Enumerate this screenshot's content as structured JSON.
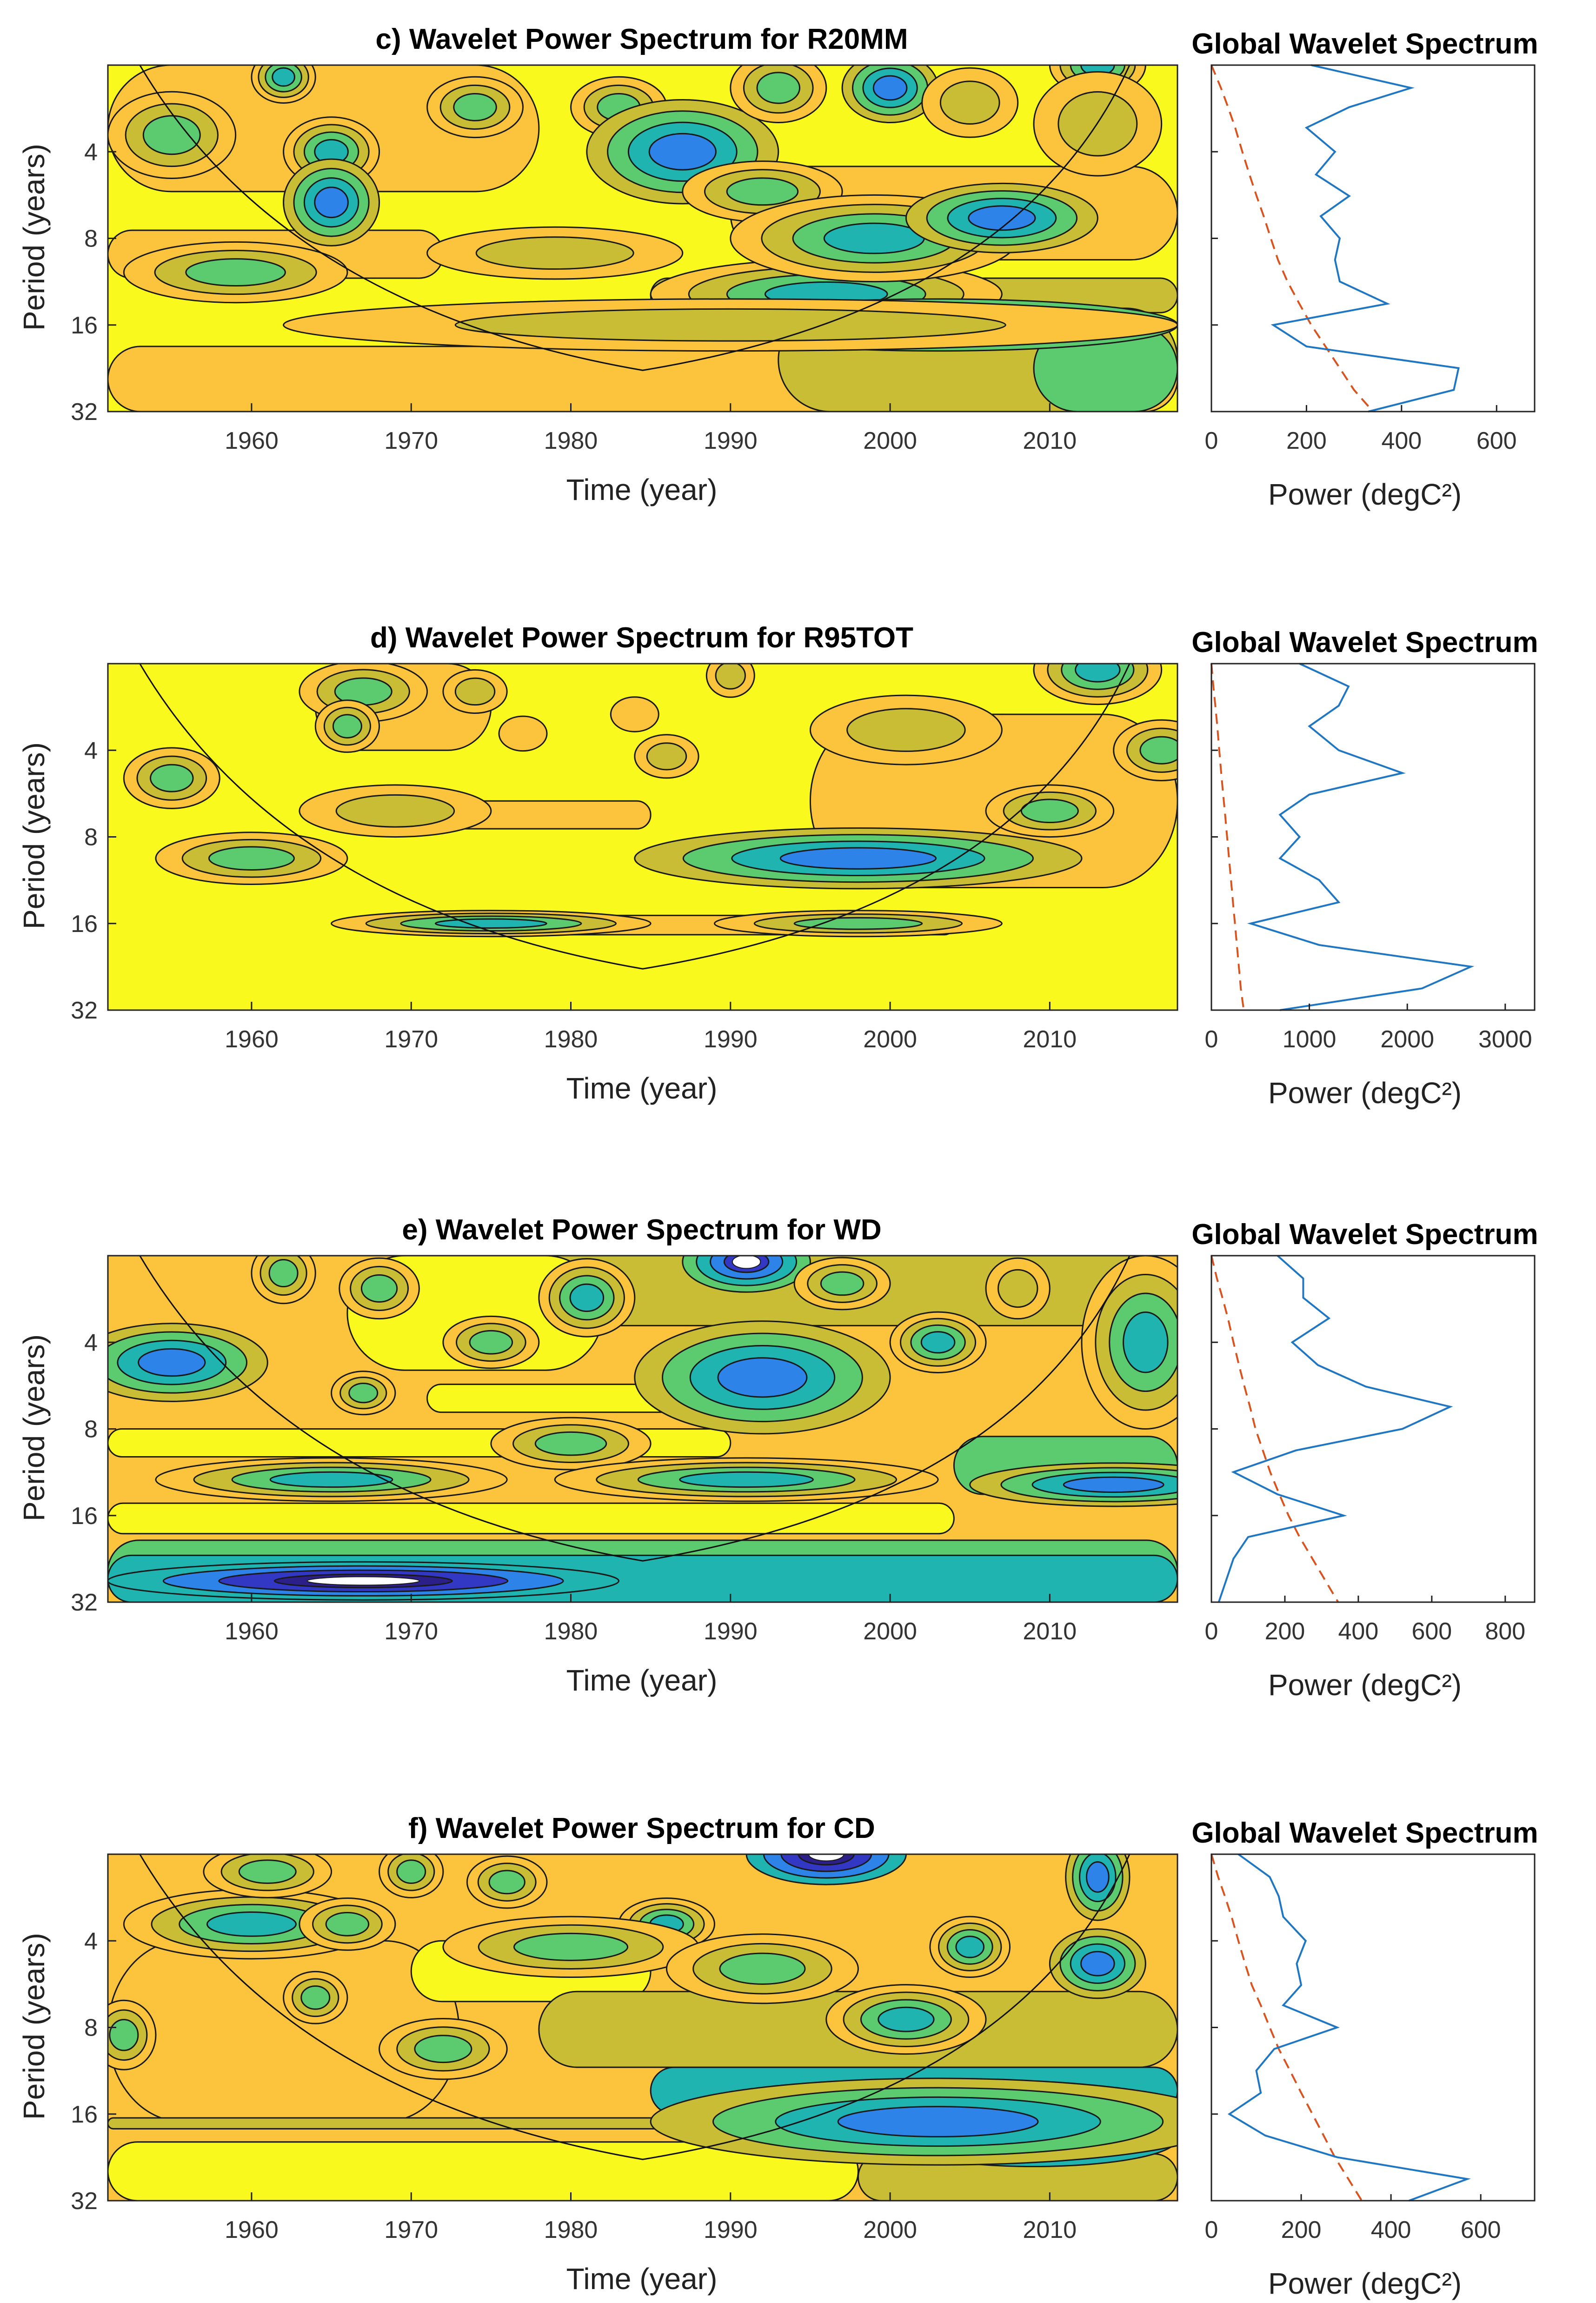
{
  "colors": {
    "yellow": "#f9f91e",
    "orange": "#fbc43c",
    "olive": "#c8bd34",
    "green": "#5ccb70",
    "teal": "#1fb4b0",
    "blue": "#2d83e8",
    "indigo": "#3338c4",
    "navy": "#2c1f8a",
    "power_line": "#1f77c4",
    "significance_line": "#d9531e"
  },
  "chart_data": [
    {
      "type": "heatmap",
      "title": "c) Wavelet Power Spectrum for  R20MM",
      "xlabel": "Time (year)",
      "ylabel": "Period (years)",
      "xlim": [
        1951,
        2018
      ],
      "ylim": [
        2,
        32
      ],
      "x_ticks": [
        "1960",
        "1970",
        "1980",
        "1990",
        "2000",
        "2010"
      ],
      "y_ticks": [
        "4",
        "8",
        "16",
        "32"
      ],
      "bg_level": 0,
      "blobs": [
        {
          "t": 1955,
          "p": 3.5,
          "lvl": 3,
          "w": 4,
          "h": 0.5
        },
        {
          "t": 1962,
          "p": 2.2,
          "lvl": 4,
          "w": 2,
          "h": 0.3
        },
        {
          "t": 1965,
          "p": 4.0,
          "lvl": 4,
          "w": 3,
          "h": 0.4
        },
        {
          "t": 1965,
          "p": 6.0,
          "lvl": 5,
          "w": 3,
          "h": 0.5
        },
        {
          "t": 1959,
          "p": 10.5,
          "lvl": 3,
          "w": 7,
          "h": 0.35
        },
        {
          "t": 1974,
          "p": 2.8,
          "lvl": 3,
          "w": 3,
          "h": 0.35
        },
        {
          "t": 1983,
          "p": 2.8,
          "lvl": 3,
          "w": 3,
          "h": 0.35
        },
        {
          "t": 1979,
          "p": 9.0,
          "lvl": 2,
          "w": 8,
          "h": 0.3
        },
        {
          "t": 1987,
          "p": 4.0,
          "lvl": 5,
          "w": 6,
          "h": 0.6
        },
        {
          "t": 1993,
          "p": 2.4,
          "lvl": 3,
          "w": 3,
          "h": 0.4
        },
        {
          "t": 1992,
          "p": 5.5,
          "lvl": 3,
          "w": 5,
          "h": 0.35
        },
        {
          "t": 1996,
          "p": 12.5,
          "lvl": 4,
          "w": 11,
          "h": 0.4
        },
        {
          "t": 1999,
          "p": 8.0,
          "lvl": 4,
          "w": 9,
          "h": 0.5
        },
        {
          "t": 2000,
          "p": 2.4,
          "lvl": 5,
          "w": 3,
          "h": 0.4
        },
        {
          "t": 2007,
          "p": 6.8,
          "lvl": 5,
          "w": 6,
          "h": 0.4
        },
        {
          "t": 2005,
          "p": 2.7,
          "lvl": 2,
          "w": 3,
          "h": 0.4
        },
        {
          "t": 2013,
          "p": 2.0,
          "lvl": 4,
          "w": 3,
          "h": 0.35
        },
        {
          "t": 2003,
          "p": 16.0,
          "lvl": 6,
          "w": 15,
          "h": 0.3
        },
        {
          "t": 1990,
          "p": 16.0,
          "lvl": 2,
          "w": 28,
          "h": 0.3
        },
        {
          "t": 2013,
          "p": 3.2,
          "lvl": 2,
          "w": 4,
          "h": 0.6
        }
      ],
      "bands": [
        {
          "x0": 1951,
          "x1": 1978,
          "p0": 2.0,
          "p1": 5.5,
          "lvl": 1
        },
        {
          "x0": 1990,
          "x1": 2018,
          "p0": 4.5,
          "p1": 9.5,
          "lvl": 1
        },
        {
          "x0": 1951,
          "x1": 1972,
          "p0": 7.5,
          "p1": 11.0,
          "lvl": 1
        },
        {
          "x0": 1985,
          "x1": 2018,
          "p0": 11.0,
          "p1": 14.5,
          "lvl": 2
        },
        {
          "x0": 1951,
          "x1": 2018,
          "p0": 19.0,
          "p1": 32.0,
          "lvl": 1
        },
        {
          "x0": 1993,
          "x1": 2018,
          "p0": 14.0,
          "p1": 32.0,
          "lvl": 2
        },
        {
          "x0": 2009,
          "x1": 2018,
          "p0": 16.0,
          "p1": 32.0,
          "lvl": 3
        }
      ],
      "global": {
        "title": "Global Wavelet Spectrum",
        "xlabel": "Power (degC²)",
        "xlim": [
          0,
          680
        ],
        "x_ticks": [
          0,
          200,
          400,
          600
        ],
        "periods": [
          2.0,
          2.4,
          2.8,
          3.3,
          4.0,
          4.8,
          5.7,
          6.7,
          8.0,
          9.5,
          11.3,
          13.5,
          16.0,
          19.0,
          22.6,
          26.9,
          32.0
        ],
        "power": [
          210,
          420,
          290,
          200,
          260,
          220,
          290,
          230,
          270,
          260,
          270,
          370,
          130,
          200,
          520,
          510,
          330
        ],
        "significance": [
          0,
          20,
          35,
          50,
          65,
          80,
          95,
          110,
          125,
          140,
          160,
          185,
          210,
          240,
          270,
          300,
          340
        ]
      }
    },
    {
      "type": "heatmap",
      "title": "d) Wavelet Power Spectrum for  R95TOT",
      "xlabel": "Time (year)",
      "ylabel": "Period (years)",
      "xlim": [
        1951,
        2018
      ],
      "ylim": [
        2,
        32
      ],
      "x_ticks": [
        "1960",
        "1970",
        "1980",
        "1990",
        "2000",
        "2010"
      ],
      "y_ticks": [
        "4",
        "8",
        "16",
        "32"
      ],
      "bg_level": 0,
      "blobs": [
        {
          "t": 1955,
          "p": 5.0,
          "lvl": 3,
          "w": 3,
          "h": 0.35
        },
        {
          "t": 1960,
          "p": 9.5,
          "lvl": 3,
          "w": 6,
          "h": 0.3
        },
        {
          "t": 1969,
          "p": 6.5,
          "lvl": 2,
          "w": 6,
          "h": 0.3
        },
        {
          "t": 1967,
          "p": 2.5,
          "lvl": 3,
          "w": 4,
          "h": 0.35
        },
        {
          "t": 1966,
          "p": 3.3,
          "lvl": 3,
          "w": 2,
          "h": 0.3
        },
        {
          "t": 1974,
          "p": 2.5,
          "lvl": 2,
          "w": 2,
          "h": 0.25
        },
        {
          "t": 1977,
          "p": 3.5,
          "lvl": 1,
          "w": 1.5,
          "h": 0.2
        },
        {
          "t": 1984,
          "p": 3.0,
          "lvl": 1,
          "w": 1.5,
          "h": 0.2
        },
        {
          "t": 1986,
          "p": 4.2,
          "lvl": 2,
          "w": 2,
          "h": 0.25
        },
        {
          "t": 1990,
          "p": 2.2,
          "lvl": 2,
          "w": 1.5,
          "h": 0.25
        },
        {
          "t": 1975,
          "p": 16.0,
          "lvl": 4,
          "w": 10,
          "h": 0.15
        },
        {
          "t": 1998,
          "p": 16.0,
          "lvl": 3,
          "w": 9,
          "h": 0.15
        },
        {
          "t": 1998,
          "p": 9.5,
          "lvl": 5,
          "w": 14,
          "h": 0.35
        },
        {
          "t": 2001,
          "p": 3.4,
          "lvl": 2,
          "w": 6,
          "h": 0.4
        },
        {
          "t": 2010,
          "p": 6.5,
          "lvl": 3,
          "w": 4,
          "h": 0.3
        },
        {
          "t": 2013,
          "p": 2.1,
          "lvl": 4,
          "w": 4,
          "h": 0.4
        },
        {
          "t": 2017,
          "p": 4.0,
          "lvl": 3,
          "w": 3,
          "h": 0.35
        }
      ],
      "bands": [
        {
          "x0": 1995,
          "x1": 2018,
          "p0": 3.0,
          "p1": 12.0,
          "lvl": 1
        },
        {
          "x0": 1964,
          "x1": 1975,
          "p0": 2.0,
          "p1": 4.0,
          "lvl": 1
        },
        {
          "x0": 1975,
          "x1": 2004,
          "p0": 15.0,
          "p1": 17.5,
          "lvl": 1
        },
        {
          "x0": 1965,
          "x1": 1985,
          "p0": 6.0,
          "p1": 7.5,
          "lvl": 1
        }
      ],
      "global": {
        "title": "Global Wavelet Spectrum",
        "xlabel": "Power (degC²)",
        "xlim": [
          0,
          3300
        ],
        "x_ticks": [
          0,
          1000,
          2000,
          3000
        ],
        "periods": [
          2.0,
          2.4,
          2.8,
          3.3,
          4.0,
          4.8,
          5.7,
          6.7,
          8.0,
          9.5,
          11.3,
          13.5,
          16.0,
          19.0,
          22.6,
          26.9,
          32.0
        ],
        "power": [
          900,
          1400,
          1300,
          1000,
          1300,
          1950,
          1000,
          700,
          900,
          700,
          1100,
          1300,
          400,
          1100,
          2650,
          2150,
          700
        ],
        "significance": [
          0,
          20,
          40,
          60,
          80,
          100,
          120,
          140,
          160,
          180,
          200,
          220,
          240,
          260,
          280,
          300,
          330
        ]
      }
    },
    {
      "type": "heatmap",
      "title": "e) Wavelet Power Spectrum for  WD",
      "xlabel": "Time (year)",
      "ylabel": "Period (years)",
      "xlim": [
        1951,
        2018
      ],
      "ylim": [
        2,
        32
      ],
      "x_ticks": [
        "1960",
        "1970",
        "1980",
        "1990",
        "2000",
        "2010"
      ],
      "y_ticks": [
        "4",
        "8",
        "16",
        "32"
      ],
      "bg_level": 1,
      "blobs": [
        {
          "t": 1955,
          "p": 4.7,
          "lvl": 5,
          "w": 6,
          "h": 0.45
        },
        {
          "t": 1962,
          "p": 2.3,
          "lvl": 3,
          "w": 2,
          "h": 0.35
        },
        {
          "t": 1967,
          "p": 6.0,
          "lvl": 3,
          "w": 2,
          "h": 0.25
        },
        {
          "t": 1968,
          "p": 2.6,
          "lvl": 3,
          "w": 2.5,
          "h": 0.35
        },
        {
          "t": 1975,
          "p": 4.0,
          "lvl": 3,
          "w": 3,
          "h": 0.3
        },
        {
          "t": 1981,
          "p": 2.8,
          "lvl": 4,
          "w": 3,
          "h": 0.45
        },
        {
          "t": 1980,
          "p": 9.0,
          "lvl": 3,
          "w": 5,
          "h": 0.3
        },
        {
          "t": 1965,
          "p": 12.0,
          "lvl": 4,
          "w": 11,
          "h": 0.25
        },
        {
          "t": 1991,
          "p": 12.0,
          "lvl": 4,
          "w": 12,
          "h": 0.25
        },
        {
          "t": 1992,
          "p": 5.3,
          "lvl": 5,
          "w": 8,
          "h": 0.65
        },
        {
          "t": 1991,
          "p": 2.1,
          "lvl": 6,
          "w": 4,
          "h": 0.35
        },
        {
          "t": 1997,
          "p": 2.5,
          "lvl": 3,
          "w": 3,
          "h": 0.3
        },
        {
          "t": 2003,
          "p": 4.0,
          "lvl": 4,
          "w": 3,
          "h": 0.35
        },
        {
          "t": 2008,
          "p": 2.6,
          "lvl": 2,
          "w": 2,
          "h": 0.35
        },
        {
          "t": 1967,
          "p": 27.0,
          "lvl": 7,
          "w": 16,
          "h": 0.22
        },
        {
          "t": 2016,
          "p": 4.0,
          "lvl": 4,
          "w": 4,
          "h": 1.0
        },
        {
          "t": 2014,
          "p": 12.5,
          "lvl": 5,
          "w": 9,
          "h": 0.25
        }
      ],
      "bands": [
        {
          "x0": 1968,
          "x1": 2018,
          "p0": 2.0,
          "p1": 3.5,
          "lvl": 2
        },
        {
          "x0": 1951,
          "x1": 1990,
          "p0": 8.0,
          "p1": 10.0,
          "lvl": 0
        },
        {
          "x0": 1971,
          "x1": 1987,
          "p0": 5.6,
          "p1": 7.0,
          "lvl": 0
        },
        {
          "x0": 1966,
          "x1": 1982,
          "p0": 2.0,
          "p1": 5.0,
          "lvl": 0
        },
        {
          "x0": 1951,
          "x1": 2018,
          "p0": 19.5,
          "p1": 32.0,
          "lvl": 3
        },
        {
          "x0": 1951,
          "x1": 2018,
          "p0": 22.0,
          "p1": 32.0,
          "lvl": 4
        },
        {
          "x0": 2004,
          "x1": 2018,
          "p0": 8.5,
          "p1": 13.5,
          "lvl": 3
        },
        {
          "x0": 1951,
          "x1": 2004,
          "p0": 14.5,
          "p1": 18.5,
          "lvl": 0
        }
      ],
      "global": {
        "title": "Global Wavelet Spectrum",
        "xlabel": "Power (degC²)",
        "xlim": [
          0,
          880
        ],
        "x_ticks": [
          0,
          200,
          400,
          600,
          800
        ],
        "periods": [
          2.0,
          2.4,
          2.8,
          3.3,
          4.0,
          4.8,
          5.7,
          6.7,
          8.0,
          9.5,
          11.3,
          13.5,
          16.0,
          19.0,
          22.6,
          26.9,
          32.0
        ],
        "power": [
          180,
          250,
          250,
          320,
          220,
          290,
          420,
          650,
          520,
          230,
          60,
          180,
          360,
          100,
          60,
          40,
          20
        ],
        "significance": [
          0,
          15,
          30,
          45,
          60,
          75,
          90,
          105,
          120,
          140,
          160,
          185,
          210,
          240,
          275,
          310,
          345
        ]
      }
    },
    {
      "type": "heatmap",
      "title": "f) Wavelet Power Spectrum for  CD",
      "xlabel": "Time (year)",
      "ylabel": "Period (years)",
      "xlim": [
        1951,
        2018
      ],
      "ylim": [
        2,
        32
      ],
      "x_ticks": [
        "1960",
        "1970",
        "1980",
        "1990",
        "2000",
        "2010"
      ],
      "y_ticks": [
        "4",
        "8",
        "16",
        "32"
      ],
      "bg_level": 1,
      "blobs": [
        {
          "t": 1960,
          "p": 3.5,
          "lvl": 4,
          "w": 8,
          "h": 0.4
        },
        {
          "t": 1961,
          "p": 2.3,
          "lvl": 3,
          "w": 4,
          "h": 0.3
        },
        {
          "t": 1966,
          "p": 3.5,
          "lvl": 3,
          "w": 3,
          "h": 0.3
        },
        {
          "t": 1964,
          "p": 6.3,
          "lvl": 3,
          "w": 2,
          "h": 0.3
        },
        {
          "t": 1970,
          "p": 2.3,
          "lvl": 3,
          "w": 2,
          "h": 0.3
        },
        {
          "t": 1972,
          "p": 9.5,
          "lvl": 3,
          "w": 4,
          "h": 0.35
        },
        {
          "t": 1976,
          "p": 2.5,
          "lvl": 3,
          "w": 2.5,
          "h": 0.3
        },
        {
          "t": 1986,
          "p": 3.5,
          "lvl": 4,
          "w": 3,
          "h": 0.3
        },
        {
          "t": 1980,
          "p": 4.2,
          "lvl": 3,
          "w": 8,
          "h": 0.35
        },
        {
          "t": 1992,
          "p": 5.0,
          "lvl": 3,
          "w": 6,
          "h": 0.4
        },
        {
          "t": 1996,
          "p": 2.0,
          "lvl": 7,
          "w": 5,
          "h": 0.35
        },
        {
          "t": 2001,
          "p": 7.5,
          "lvl": 4,
          "w": 5,
          "h": 0.4
        },
        {
          "t": 2005,
          "p": 4.2,
          "lvl": 4,
          "w": 2.5,
          "h": 0.35
        },
        {
          "t": 2013,
          "p": 4.8,
          "lvl": 5,
          "w": 3,
          "h": 0.4
        },
        {
          "t": 2013,
          "p": 2.4,
          "lvl": 5,
          "w": 2,
          "h": 0.5
        },
        {
          "t": 1952,
          "p": 8.5,
          "lvl": 3,
          "w": 2,
          "h": 0.4
        },
        {
          "t": 2009,
          "p": 19.5,
          "lvl": 7,
          "w": 9,
          "h": 0.32
        },
        {
          "t": 2003,
          "p": 17.0,
          "lvl": 5,
          "w": 18,
          "h": 0.5
        }
      ],
      "bands": [
        {
          "x0": 1951,
          "x1": 1973,
          "p0": 4.0,
          "p1": 17.0,
          "lvl": 1
        },
        {
          "x0": 1970,
          "x1": 1985,
          "p0": 4.0,
          "p1": 6.5,
          "lvl": 0
        },
        {
          "x0": 1951,
          "x1": 1998,
          "p0": 20.0,
          "p1": 32.0,
          "lvl": 0
        },
        {
          "x0": 1951,
          "x1": 2018,
          "p0": 16.5,
          "p1": 18.0,
          "lvl": 2
        },
        {
          "x0": 1985,
          "x1": 2018,
          "p0": 11.0,
          "p1": 16.0,
          "lvl": 4
        },
        {
          "x0": 1998,
          "x1": 2018,
          "p0": 22.0,
          "p1": 32.0,
          "lvl": 2
        },
        {
          "x0": 1978,
          "x1": 2018,
          "p0": 6.0,
          "p1": 11.0,
          "lvl": 2
        }
      ],
      "global": {
        "title": "Global Wavelet Spectrum",
        "xlabel": "Power (degC²)",
        "xlim": [
          0,
          720
        ],
        "x_ticks": [
          0,
          200,
          400,
          600
        ],
        "periods": [
          2.0,
          2.4,
          2.8,
          3.3,
          4.0,
          4.8,
          5.7,
          6.7,
          8.0,
          9.5,
          11.3,
          13.5,
          16.0,
          19.0,
          22.6,
          26.9,
          32.0
        ],
        "power": [
          60,
          130,
          150,
          160,
          210,
          190,
          200,
          160,
          280,
          140,
          100,
          110,
          40,
          120,
          280,
          570,
          440
        ],
        "significance": [
          0,
          15,
          30,
          45,
          60,
          75,
          90,
          110,
          130,
          150,
          175,
          200,
          225,
          250,
          275,
          305,
          335
        ]
      }
    }
  ]
}
